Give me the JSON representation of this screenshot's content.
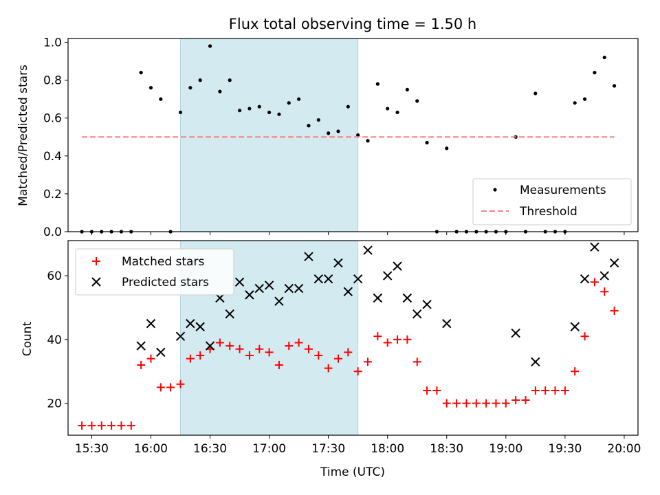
{
  "chart_data": [
    {
      "type": "scatter",
      "title": "Flux total observing time = 1.50 h",
      "xlabel": "",
      "ylabel": "Matched/Predicted stars",
      "xlim": [
        "15:18",
        "20:07"
      ],
      "ylim": [
        0,
        1.02
      ],
      "yticks": [
        "0.0",
        "0.2",
        "0.4",
        "0.6",
        "0.8",
        "1.0"
      ],
      "shaded_span": {
        "start": "16:15",
        "end": "17:45",
        "color": "#d4eaf1"
      },
      "legend_position": "lower-right",
      "colors": {
        "measurements": "#000000",
        "threshold": "#ff7f7f"
      },
      "series": [
        {
          "name": "Measurements",
          "kind": "scatter",
          "x": [
            "15:25",
            "15:30",
            "15:35",
            "15:40",
            "15:45",
            "15:50",
            "15:55",
            "16:00",
            "16:05",
            "16:10",
            "16:15",
            "16:20",
            "16:25",
            "16:30",
            "16:35",
            "16:40",
            "16:45",
            "16:50",
            "16:55",
            "17:00",
            "17:05",
            "17:10",
            "17:15",
            "17:20",
            "17:25",
            "17:30",
            "17:35",
            "17:40",
            "17:45",
            "17:50",
            "17:55",
            "18:00",
            "18:05",
            "18:10",
            "18:15",
            "18:20",
            "18:25",
            "18:30",
            "18:35",
            "18:40",
            "18:45",
            "18:50",
            "18:55",
            "19:00",
            "19:05",
            "19:10",
            "19:15",
            "19:20",
            "19:25",
            "19:30",
            "19:35",
            "19:40",
            "19:45",
            "19:50",
            "19:55"
          ],
          "y": [
            0,
            0,
            0,
            0,
            0,
            0,
            0.84,
            0.76,
            0.7,
            0,
            0.63,
            0.76,
            0.8,
            0.98,
            0.74,
            0.8,
            0.64,
            0.65,
            0.66,
            0.63,
            0.62,
            0.68,
            0.7,
            0.56,
            0.59,
            0.52,
            0.53,
            0.66,
            0.51,
            0.48,
            0.78,
            0.65,
            0.63,
            0.75,
            0.69,
            0.47,
            0,
            0.44,
            0,
            0,
            0,
            0,
            0,
            0,
            0.5,
            0,
            0.73,
            0,
            0,
            0,
            0.68,
            0.7,
            0.84,
            0.92,
            0.77
          ]
        },
        {
          "name": "Threshold",
          "kind": "line",
          "x": [
            "15:25",
            "19:55"
          ],
          "y": [
            0.5,
            0.5
          ]
        }
      ]
    },
    {
      "type": "scatter",
      "title": "",
      "xlabel": "Time (UTC)",
      "ylabel": "Count",
      "xlim": [
        "15:18",
        "20:07"
      ],
      "ylim": [
        10,
        71
      ],
      "yticks": [
        "20",
        "40",
        "60"
      ],
      "xticks": [
        "15:30",
        "16:00",
        "16:30",
        "17:00",
        "17:30",
        "18:00",
        "18:30",
        "19:00",
        "19:30",
        "20:00"
      ],
      "shaded_span": {
        "start": "16:15",
        "end": "17:45",
        "color": "#d4eaf1"
      },
      "legend_position": "upper-left",
      "colors": {
        "matched": "#ff0000",
        "predicted": "#000000"
      },
      "series": [
        {
          "name": "Matched stars",
          "kind": "plus",
          "x": [
            "15:25",
            "15:30",
            "15:35",
            "15:40",
            "15:45",
            "15:50",
            "15:55",
            "16:00",
            "16:05",
            "16:10",
            "16:15",
            "16:20",
            "16:25",
            "16:30",
            "16:35",
            "16:40",
            "16:45",
            "16:50",
            "16:55",
            "17:00",
            "17:05",
            "17:10",
            "17:15",
            "17:20",
            "17:25",
            "17:30",
            "17:35",
            "17:40",
            "17:45",
            "17:50",
            "17:55",
            "18:00",
            "18:05",
            "18:10",
            "18:15",
            "18:20",
            "18:25",
            "18:30",
            "18:35",
            "18:40",
            "18:45",
            "18:50",
            "18:55",
            "19:00",
            "19:05",
            "19:10",
            "19:15",
            "19:20",
            "19:25",
            "19:30",
            "19:35",
            "19:40",
            "19:45",
            "19:50",
            "19:55"
          ],
          "y": [
            13,
            13,
            13,
            13,
            13,
            13,
            32,
            34,
            25,
            25,
            26,
            34,
            35,
            37,
            39,
            38,
            37,
            35,
            37,
            36,
            32,
            38,
            39,
            37,
            35,
            31,
            34,
            36,
            30,
            33,
            41,
            39,
            40,
            40,
            33,
            24,
            24,
            20,
            20,
            20,
            20,
            20,
            20,
            20,
            21,
            21,
            24,
            24,
            24,
            24,
            30,
            41,
            58,
            55,
            49
          ]
        },
        {
          "name": "Predicted stars",
          "kind": "cross",
          "x": [
            "15:55",
            "16:00",
            "16:05",
            "16:15",
            "16:20",
            "16:25",
            "16:30",
            "16:35",
            "16:40",
            "16:45",
            "16:50",
            "16:55",
            "17:00",
            "17:05",
            "17:10",
            "17:15",
            "17:20",
            "17:25",
            "17:30",
            "17:35",
            "17:40",
            "17:45",
            "17:50",
            "17:55",
            "18:00",
            "18:05",
            "18:10",
            "18:15",
            "18:20",
            "18:30",
            "19:05",
            "19:15",
            "19:35",
            "19:40",
            "19:45",
            "19:50",
            "19:55"
          ],
          "y": [
            38,
            45,
            36,
            41,
            45,
            44,
            38,
            53,
            48,
            58,
            54,
            56,
            57,
            52,
            56,
            56,
            66,
            59,
            59,
            64,
            55,
            59,
            68,
            53,
            60,
            63,
            53,
            48,
            51,
            45,
            42,
            33,
            44,
            59,
            69,
            60,
            64
          ]
        }
      ]
    }
  ]
}
